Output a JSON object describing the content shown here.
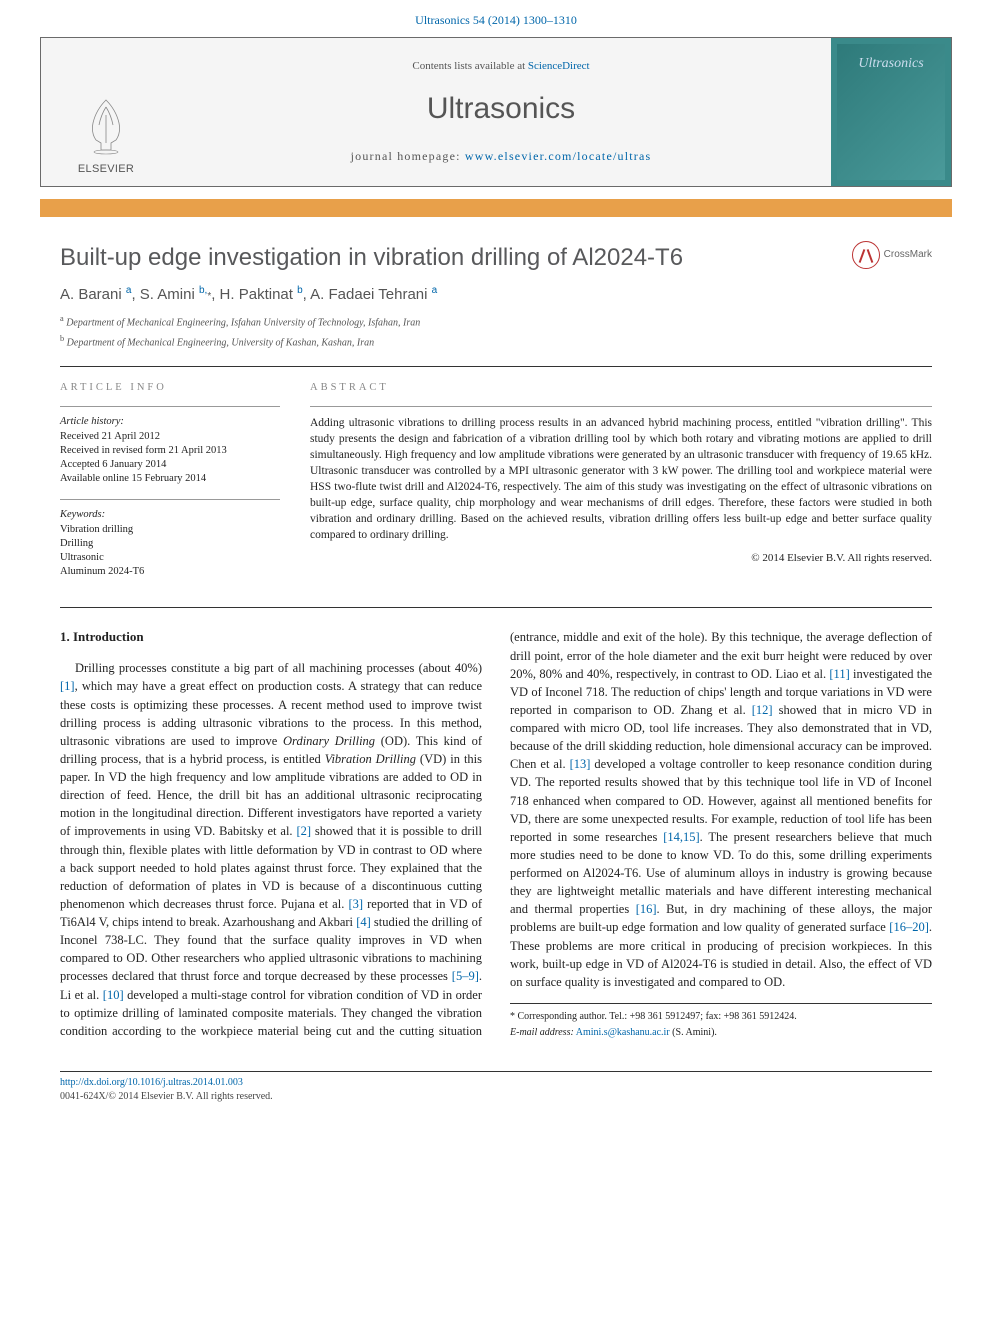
{
  "citation": {
    "journal_link": "Ultrasonics 54 (2014) 1300–1310",
    "link_color": "#0066aa"
  },
  "header": {
    "contents_prefix": "Contents lists available at ",
    "contents_link": "ScienceDirect",
    "journal": "Ultrasonics",
    "homepage_prefix": "journal homepage: ",
    "homepage_url": "www.elsevier.com/locate/ultras",
    "publisher_name": "ELSEVIER",
    "cover_text": "Ultrasonics",
    "bg_color": "#f5f5f5",
    "border_color": "#6a6a6a",
    "cover_bg": "#3a8a8a"
  },
  "orange_bar_color": "#e8a04a",
  "article": {
    "title": "Built-up edge investigation in vibration drilling of Al2024-T6",
    "title_color": "#58595b",
    "crossmark_label": "CrossMark",
    "authors_html": "A. Barani <sup>a</sup>, S. Amini <sup>b,</sup><span class='star'>*</span>, H. Paktinat <sup>b</sup>, A. Fadaei Tehrani <sup>a</sup>",
    "affiliations": [
      {
        "sup": "a",
        "text": "Department of Mechanical Engineering, Isfahan University of Technology, Isfahan, Iran"
      },
      {
        "sup": "b",
        "text": "Department of Mechanical Engineering, University of Kashan, Kashan, Iran"
      }
    ]
  },
  "info": {
    "label": "article info",
    "history_hdr": "Article history:",
    "history": [
      "Received 21 April 2012",
      "Received in revised form 21 April 2013",
      "Accepted 6 January 2014",
      "Available online 15 February 2014"
    ],
    "keywords_hdr": "Keywords:",
    "keywords": [
      "Vibration drilling",
      "Drilling",
      "Ultrasonic",
      "Aluminum 2024-T6"
    ]
  },
  "abstract": {
    "label": "abstract",
    "text": "Adding ultrasonic vibrations to drilling process results in an advanced hybrid machining process, entitled \"vibration drilling\". This study presents the design and fabrication of a vibration drilling tool by which both rotary and vibrating motions are applied to drill simultaneously. High frequency and low amplitude vibrations were generated by an ultrasonic transducer with frequency of 19.65 kHz. Ultrasonic transducer was controlled by a MPI ultrasonic generator with 3 kW power. The drilling tool and workpiece material were HSS two-flute twist drill and Al2024-T6, respectively. The aim of this study was investigating on the effect of ultrasonic vibrations on built-up edge, surface quality, chip morphology and wear mechanisms of drill edges. Therefore, these factors were studied in both vibration and ordinary drilling. Based on the achieved results, vibration drilling offers less built-up edge and better surface quality compared to ordinary drilling.",
    "copyright": "© 2014 Elsevier B.V. All rights reserved."
  },
  "body": {
    "section_number": "1.",
    "section_title": "Introduction",
    "paragraph": "Drilling processes constitute a big part of all machining processes (about 40%) <a class='ref' href='#'>[1]</a>, which may have a great effect on production costs. A strategy that can reduce these costs is optimizing these processes. A recent method used to improve twist drilling process is adding ultrasonic vibrations to the process. In this method, ultrasonic vibrations are used to improve <i>Ordinary Drilling</i> (OD). This kind of drilling process, that is a hybrid process, is entitled <i>Vibration Drilling</i> (VD) in this paper. In VD the high frequency and low amplitude vibrations are added to OD in direction of feed. Hence, the drill bit has an additional ultrasonic reciprocating motion in the longitudinal direction. Different investigators have reported a variety of improvements in using VD. Babitsky et al. <a class='ref' href='#'>[2]</a> showed that it is possible to drill through thin, flexible plates with little deformation by VD in contrast to OD where a back support needed to hold plates against thrust force. They explained that the reduction of deformation of plates in VD is because of a discontinuous cutting phenomenon which decreases thrust force. Pujana et al. <a class='ref' href='#'>[3]</a> reported that in VD of Ti6Al4 V, chips intend to break. Azarhoushang and Akbari <a class='ref' href='#'>[4]</a> studied the drilling of Inconel 738-LC. They found that the surface quality improves in VD when compared to OD. Other researchers who applied ultrasonic vibrations to machining processes declared that thrust force and torque decreased by these processes <a class='ref' href='#'>[5–9]</a>. Li et al. <a class='ref' href='#'>[10]</a> developed a multi-stage control for vibration condition of VD in order to optimize drilling of laminated composite materials. They changed the vibration condition according to the workpiece material being cut and the cutting situation (entrance, middle and exit of the hole). By this technique, the average deflection of drill point, error of the hole diameter and the exit burr height were reduced by over 20%, 80% and 40%, respectively, in contrast to OD. Liao et al. <a class='ref' href='#'>[11]</a> investigated the VD of Inconel 718. The reduction of chips' length and torque variations in VD were reported in comparison to OD. Zhang et al. <a class='ref' href='#'>[12]</a> showed that in micro VD in compared with micro OD, tool life increases. They also demonstrated that in VD, because of the drill skidding reduction, hole dimensional accuracy can be improved. Chen et al. <a class='ref' href='#'>[13]</a> developed a voltage controller to keep resonance condition during VD. The reported results showed that by this technique tool life in VD of Inconel 718 enhanced when compared to OD. However, against all mentioned benefits for VD, there are some unexpected results. For example, reduction of tool life has been reported in some researches <a class='ref' href='#'>[14,15]</a>. The present researchers believe that much more studies need to be done to know VD. To do this, some drilling experiments performed on Al2024-T6. Use of aluminum alloys in industry is growing because they are lightweight metallic materials and have different interesting mechanical and thermal properties <a class='ref' href='#'>[16]</a>. But, in dry machining of these alloys, the major problems are built-up edge formation and low quality of generated surface <a class='ref' href='#'>[16–20]</a>. These problems are more critical in producing of precision workpieces. In this work, built-up edge in VD of Al2024-T6 is studied in detail. Also, the effect of VD on surface quality is investigated and compared to OD."
  },
  "footnote": {
    "corresponding": "* Corresponding author. Tel.: +98 361 5912497; fax: +98 361 5912424.",
    "email_label": "E-mail address:",
    "email": "Amini.s@kashanu.ac.ir",
    "email_suffix": "(S. Amini)."
  },
  "doi": {
    "url": "http://dx.doi.org/10.1016/j.ultras.2014.01.003",
    "issn_line": "0041-624X/© 2014 Elsevier B.V. All rights reserved."
  },
  "colors": {
    "text": "#222222",
    "link": "#0066aa",
    "grey_text": "#555555",
    "light_grey": "#888888"
  }
}
